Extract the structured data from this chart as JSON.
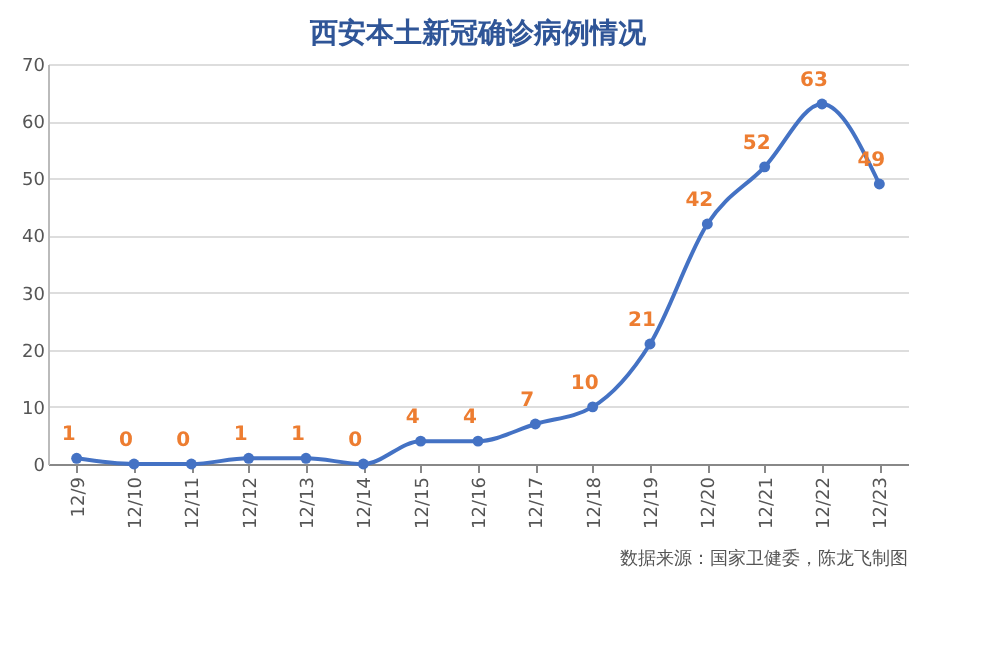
{
  "chart_data": {
    "type": "line",
    "title": "西安本土新冠确诊病例情况",
    "categories": [
      "12/9",
      "12/10",
      "12/11",
      "12/12",
      "12/13",
      "12/14",
      "12/15",
      "12/16",
      "12/17",
      "12/18",
      "12/19",
      "12/20",
      "12/21",
      "12/22",
      "12/23"
    ],
    "series": [
      {
        "color": "#4472c4",
        "values": [
          1,
          0,
          0,
          1,
          1,
          0,
          4,
          4,
          7,
          10,
          21,
          42,
          52,
          63,
          49
        ]
      }
    ],
    "ylim": [
      0,
      70
    ],
    "yticks": [
      0,
      10,
      20,
      30,
      40,
      50,
      60,
      70
    ],
    "grid": "y",
    "marker": "circle",
    "line_style": "solid",
    "data_labels": true,
    "legend": false,
    "annotations": [
      "数据来源：国家卫健委，陈龙飞制图"
    ]
  }
}
